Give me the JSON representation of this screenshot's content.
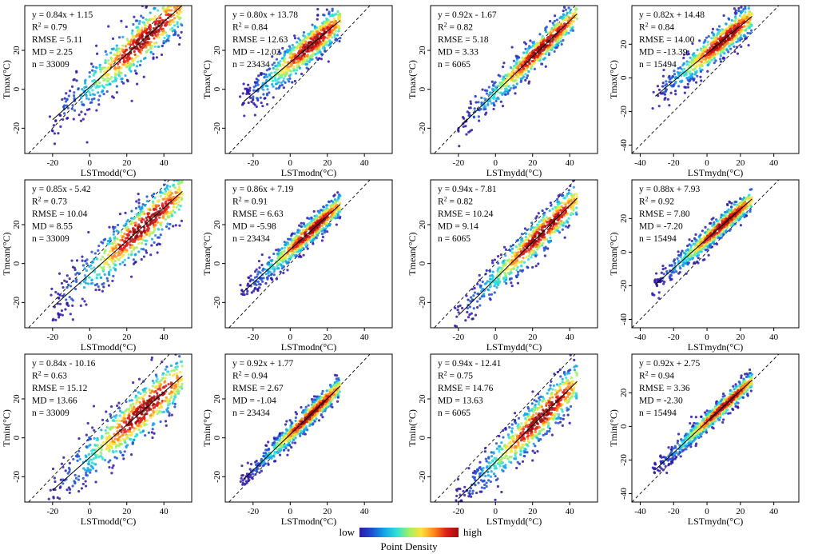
{
  "chart_data": {
    "type": "scatter",
    "subtype": "density-scatter",
    "grid": false,
    "reference_line": "1:1 dashed",
    "colormap": [
      "#2b18a8",
      "#1f4fd1",
      "#10a6e6",
      "#2fe0d8",
      "#9df06a",
      "#ffe13b",
      "#ff8a1a",
      "#e0201a",
      "#a00d0d"
    ],
    "legend": {
      "low": "low",
      "high": "high",
      "label": "Point Density",
      "placement": "bottom-center"
    },
    "panels": [
      {
        "id": "p11",
        "xlabel": "LSTmodd(°C)",
        "ylabel": "Tmax(°C)",
        "xlim": [
          -35,
          55
        ],
        "ylim": [
          -33,
          43
        ],
        "xticks": [
          -20,
          0,
          20,
          40
        ],
        "yticks": [
          -20,
          0,
          20
        ],
        "slope": 0.84,
        "intercept": 1.15,
        "x_cloud": [
          -22,
          50
        ],
        "spread": 6.5,
        "eq": "y = 0.84x + 1.15",
        "r2": "0.79",
        "rmse": "RMSE = 5.11",
        "md": "MD = 2.25",
        "n": "n = 33009"
      },
      {
        "id": "p12",
        "xlabel": "LSTmodn(°C)",
        "ylabel": "Tmax(°C)",
        "xlim": [
          -35,
          55
        ],
        "ylim": [
          -33,
          43
        ],
        "xticks": [
          -20,
          0,
          20,
          40
        ],
        "yticks": [
          -20,
          0,
          20
        ],
        "slope": 0.8,
        "intercept": 13.78,
        "x_cloud": [
          -27,
          27
        ],
        "spread": 5,
        "eq": "y = 0.80x + 13.78",
        "r2": "0.84",
        "rmse": "RMSE = 12.63",
        "md": "MD = -12.02",
        "n": "n = 23434"
      },
      {
        "id": "p13",
        "xlabel": "LSTmydd(°C)",
        "ylabel": "Tmax(°C)",
        "xlim": [
          -35,
          55
        ],
        "ylim": [
          -33,
          43
        ],
        "xticks": [
          -20,
          0,
          20,
          40
        ],
        "yticks": [
          -20,
          0,
          20
        ],
        "slope": 0.92,
        "intercept": -1.67,
        "x_cloud": [
          -22,
          44
        ],
        "spread": 4,
        "eq": "y = 0.92x - 1.67",
        "r2": "0.82",
        "rmse": "RMSE = 5.18",
        "md": "MD = 3.33",
        "n": "n = 6065"
      },
      {
        "id": "p14",
        "xlabel": "LSTmydn(°C)",
        "ylabel": "Tmax(°C)",
        "xlim": [
          -45,
          55
        ],
        "ylim": [
          -45,
          43
        ],
        "xticks": [
          -40,
          -20,
          0,
          20,
          40
        ],
        "yticks": [
          -40,
          -20,
          0,
          20
        ],
        "slope": 0.82,
        "intercept": 14.48,
        "x_cloud": [
          -33,
          27
        ],
        "spread": 5,
        "eq": "y = 0.82x + 14.48",
        "r2": "0.84",
        "rmse": "RMSE = 14.00",
        "md": "MD = -13.39",
        "n": "n = 15494"
      },
      {
        "id": "p21",
        "xlabel": "LSTmodd(°C)",
        "ylabel": "Tmean(°C)",
        "xlim": [
          -35,
          55
        ],
        "ylim": [
          -33,
          43
        ],
        "xticks": [
          -20,
          0,
          20,
          40
        ],
        "yticks": [
          -20,
          0,
          20
        ],
        "slope": 0.85,
        "intercept": -5.42,
        "x_cloud": [
          -22,
          50
        ],
        "spread": 6.5,
        "eq": "y = 0.85x - 5.42",
        "r2": "0.73",
        "rmse": "RMSE = 10.04",
        "md": "MD = 8.55",
        "n": "n = 33009"
      },
      {
        "id": "p22",
        "xlabel": "LSTmodn(°C)",
        "ylabel": "Tmean(°C)",
        "xlim": [
          -35,
          55
        ],
        "ylim": [
          -33,
          43
        ],
        "xticks": [
          -20,
          0,
          20,
          40
        ],
        "yticks": [
          -20,
          0,
          20
        ],
        "slope": 0.86,
        "intercept": 7.19,
        "x_cloud": [
          -27,
          27
        ],
        "spread": 3.5,
        "eq": "y = 0.86x + 7.19",
        "r2": "0.91",
        "rmse": "RMSE = 6.63",
        "md": "MD = -5.98",
        "n": "n = 23434"
      },
      {
        "id": "p23",
        "xlabel": "LSTmydd(°C)",
        "ylabel": "Tmean(°C)",
        "xlim": [
          -35,
          55
        ],
        "ylim": [
          -33,
          43
        ],
        "xticks": [
          -20,
          0,
          20,
          40
        ],
        "yticks": [
          -20,
          0,
          20
        ],
        "slope": 0.94,
        "intercept": -7.81,
        "x_cloud": [
          -22,
          44
        ],
        "spread": 5,
        "eq": "y = 0.94x - 7.81",
        "r2": "0.82",
        "rmse": "RMSE = 10.24",
        "md": "MD = 9.14",
        "n": "n = 6065"
      },
      {
        "id": "p24",
        "xlabel": "LSTmydn(°C)",
        "ylabel": "Tmean(°C)",
        "xlim": [
          -45,
          55
        ],
        "ylim": [
          -45,
          43
        ],
        "xticks": [
          -40,
          -20,
          0,
          20,
          40
        ],
        "yticks": [
          -40,
          -20,
          0,
          20
        ],
        "slope": 0.88,
        "intercept": 7.93,
        "x_cloud": [
          -33,
          27
        ],
        "spread": 3.5,
        "eq": "y = 0.88x + 7.93",
        "r2": "0.92",
        "rmse": "RMSE = 7.80",
        "md": "MD = -7.20",
        "n": "n = 15494"
      },
      {
        "id": "p31",
        "xlabel": "LSTmodd(°C)",
        "ylabel": "Tmin(°C)",
        "xlim": [
          -35,
          55
        ],
        "ylim": [
          -33,
          43
        ],
        "xticks": [
          -20,
          0,
          20,
          40
        ],
        "yticks": [
          -20,
          0,
          20
        ],
        "slope": 0.84,
        "intercept": -10.16,
        "x_cloud": [
          -22,
          50
        ],
        "spread": 7,
        "eq": "y = 0.84x - 10.16",
        "r2": "0.63",
        "rmse": "RMSE = 15.12",
        "md": "MD = 13.66",
        "n": "n = 33009"
      },
      {
        "id": "p32",
        "xlabel": "LSTmodn(°C)",
        "ylabel": "Tmin(°C)",
        "xlim": [
          -35,
          55
        ],
        "ylim": [
          -33,
          43
        ],
        "xticks": [
          -20,
          0,
          20,
          40
        ],
        "yticks": [
          -20,
          0,
          20
        ],
        "slope": 0.92,
        "intercept": 1.77,
        "x_cloud": [
          -27,
          27
        ],
        "spread": 3,
        "eq": "y = 0.92x + 1.77",
        "r2": "0.94",
        "rmse": "RMSE = 2.67",
        "md": "MD = -1.04",
        "n": "n = 23434"
      },
      {
        "id": "p33",
        "xlabel": "LSTmydd(°C)",
        "ylabel": "Tmin(°C)",
        "xlim": [
          -35,
          55
        ],
        "ylim": [
          -33,
          43
        ],
        "xticks": [
          -20,
          0,
          20,
          40
        ],
        "yticks": [
          -20,
          0,
          20
        ],
        "slope": 0.94,
        "intercept": -12.41,
        "x_cloud": [
          -22,
          44
        ],
        "spread": 6,
        "eq": "y = 0.94x - 12.41",
        "r2": "0.75",
        "rmse": "RMSE = 14.76",
        "md": "MD = 13.63",
        "n": "n = 6065"
      },
      {
        "id": "p34",
        "xlabel": "LSTmydn(°C)",
        "ylabel": "Tmin(°C)",
        "xlim": [
          -45,
          55
        ],
        "ylim": [
          -45,
          43
        ],
        "xticks": [
          -40,
          -20,
          0,
          20,
          40
        ],
        "yticks": [
          -40,
          -20,
          0,
          20
        ],
        "slope": 0.92,
        "intercept": 2.75,
        "x_cloud": [
          -33,
          27
        ],
        "spread": 3,
        "eq": "y = 0.92x + 2.75",
        "r2": "0.94",
        "rmse": "RMSE = 3.36",
        "md": "MD = -2.30",
        "n": "n = 15494"
      }
    ]
  }
}
